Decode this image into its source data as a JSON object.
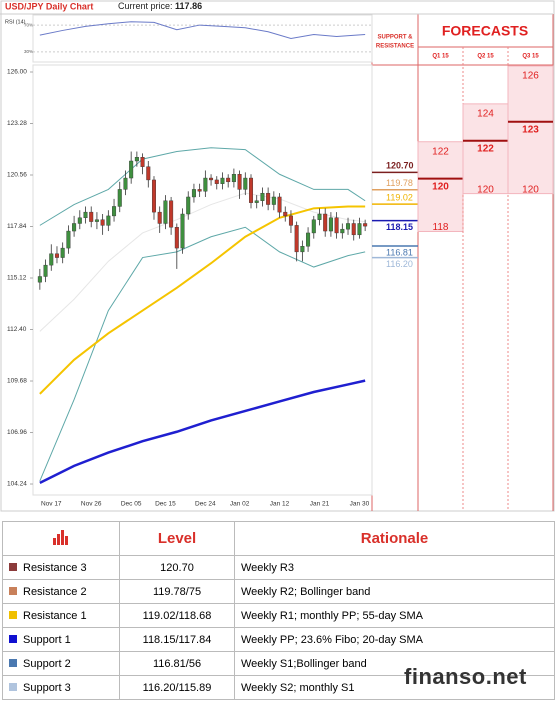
{
  "header": {
    "title": "USD/JPY Daily Chart",
    "current_price_label": "Current price:",
    "current_price": 117.86
  },
  "rsi": {
    "label": "RSI (14)",
    "color": "#6a7ac8",
    "ylim": [
      15,
      85
    ],
    "yticks": [
      {
        "value": 70,
        "label": "70%"
      },
      {
        "value": 30,
        "label": "30%"
      }
    ],
    "x": [
      0,
      4,
      8,
      12,
      16,
      20,
      24,
      28,
      32,
      36,
      40,
      44,
      48,
      52,
      57
    ],
    "values": [
      55,
      62,
      68,
      72,
      75,
      74,
      63,
      70,
      68,
      66,
      60,
      50,
      56,
      53,
      56
    ]
  },
  "chart_data": {
    "type": "candlestick",
    "ylim": [
      103.66,
      126.37
    ],
    "yticks": [
      {
        "value": 126,
        "label": "126.00"
      },
      123.28,
      120.56,
      117.84,
      115.12,
      {
        "value": 112.4,
        "label": "112.40"
      },
      109.68,
      106.96,
      104.24
    ],
    "up_color": "#3f8f3f",
    "down_color": "#c0392b",
    "categories": [
      null,
      null,
      "Nov 17",
      null,
      null,
      null,
      null,
      null,
      null,
      "Nov 26",
      null,
      null,
      null,
      null,
      null,
      null,
      "Dec 05",
      null,
      null,
      null,
      null,
      null,
      "Dec 15",
      null,
      null,
      null,
      null,
      null,
      null,
      "Dec 24",
      null,
      null,
      null,
      null,
      null,
      "Jan 02",
      null,
      null,
      null,
      null,
      null,
      null,
      "Jan 12",
      null,
      null,
      null,
      null,
      null,
      null,
      "Jan 21",
      null,
      null,
      null,
      null,
      null,
      null,
      "Jan 30",
      null
    ],
    "open": [
      114.9,
      115.2,
      115.8,
      116.4,
      116.2,
      116.7,
      117.6,
      118.0,
      118.3,
      118.6,
      118.1,
      118.2,
      117.9,
      118.4,
      118.9,
      119.8,
      120.4,
      121.3,
      121.5,
      121.0,
      120.3,
      118.6,
      118.0,
      119.2,
      117.8,
      116.7,
      118.5,
      119.4,
      119.8,
      119.7,
      120.4,
      120.3,
      120.1,
      120.4,
      120.2,
      120.6,
      119.8,
      120.4,
      119.1,
      119.2,
      119.6,
      119.0,
      119.4,
      118.6,
      118.4,
      117.9,
      116.5,
      116.8,
      117.5,
      118.2,
      118.5,
      117.6,
      118.3,
      117.5,
      117.7,
      118.0,
      117.4,
      118.0
    ],
    "high": [
      115.6,
      116.1,
      116.9,
      116.8,
      117.0,
      117.9,
      118.4,
      118.7,
      118.9,
      118.9,
      118.6,
      118.5,
      118.7,
      119.3,
      120.2,
      120.8,
      121.8,
      121.8,
      121.7,
      121.3,
      120.5,
      118.9,
      119.5,
      119.4,
      118.0,
      118.8,
      119.7,
      120.1,
      120.1,
      120.8,
      120.6,
      120.5,
      120.7,
      120.6,
      120.9,
      120.8,
      120.7,
      120.6,
      119.5,
      119.9,
      119.9,
      119.7,
      119.6,
      118.9,
      118.7,
      118.1,
      117.1,
      117.8,
      118.4,
      118.8,
      118.8,
      118.6,
      118.6,
      118.0,
      118.3,
      118.2,
      118.3,
      118.2
    ],
    "low": [
      114.5,
      114.9,
      115.5,
      115.9,
      115.9,
      116.4,
      117.3,
      117.7,
      118.0,
      117.8,
      117.7,
      117.4,
      117.6,
      118.1,
      118.6,
      119.5,
      120.1,
      121.0,
      120.6,
      119.9,
      118.2,
      117.5,
      117.7,
      117.4,
      115.6,
      116.4,
      118.2,
      119.1,
      119.4,
      119.4,
      120.0,
      119.8,
      119.8,
      119.9,
      119.9,
      119.3,
      119.5,
      118.8,
      118.8,
      118.9,
      118.7,
      118.7,
      118.3,
      118.1,
      117.5,
      116.0,
      116.0,
      116.5,
      117.2,
      117.9,
      117.3,
      117.3,
      117.2,
      117.2,
      117.4,
      117.1,
      117.2,
      117.6
    ],
    "close": [
      115.2,
      115.8,
      116.4,
      116.2,
      116.7,
      117.6,
      118.0,
      118.3,
      118.6,
      118.1,
      118.2,
      117.9,
      118.4,
      118.9,
      119.8,
      120.4,
      121.3,
      121.5,
      121.0,
      120.3,
      118.6,
      118.0,
      119.2,
      117.8,
      116.7,
      118.5,
      119.4,
      119.8,
      119.7,
      120.4,
      120.3,
      120.1,
      120.4,
      120.2,
      120.6,
      119.8,
      120.4,
      119.1,
      119.2,
      119.6,
      119.0,
      119.4,
      118.6,
      118.4,
      117.9,
      116.5,
      116.8,
      117.5,
      118.2,
      118.5,
      117.6,
      118.3,
      117.5,
      117.7,
      118.0,
      117.4,
      118.0,
      117.86
    ],
    "lines": [
      {
        "color": "#e6e6e6",
        "width": 1,
        "x": [
          0,
          6,
          12,
          18,
          24,
          30,
          36,
          42,
          48,
          54,
          57
        ],
        "values": [
          112.3,
          114.0,
          116.0,
          117.5,
          118.2,
          119.0,
          119.6,
          119.3,
          118.6,
          118.2,
          118.1
        ]
      },
      {
        "color": "#5ea8a8",
        "width": 1,
        "x": [
          0,
          6,
          12,
          18,
          24,
          30,
          36,
          42,
          48,
          54,
          57
        ],
        "values": [
          117.9,
          119.0,
          119.8,
          121.4,
          121.8,
          122.0,
          121.9,
          120.6,
          119.8,
          119.8,
          119.2
        ]
      },
      {
        "color": "#5ea8a8",
        "width": 1,
        "x": [
          0,
          6,
          12,
          18,
          24,
          30,
          36,
          42,
          48,
          54,
          57
        ],
        "values": [
          104.4,
          108.7,
          113.4,
          116.2,
          116.5,
          117.3,
          117.8,
          116.5,
          115.7,
          116.3,
          116.5
        ]
      },
      {
        "color": "#f5c400",
        "width": 2,
        "x": [
          0,
          6,
          12,
          18,
          24,
          30,
          36,
          42,
          48,
          54,
          57
        ],
        "values": [
          109.0,
          110.8,
          112.2,
          113.4,
          114.6,
          115.9,
          117.3,
          118.3,
          118.8,
          118.9,
          118.9
        ]
      },
      {
        "color": "#1f1fd0",
        "width": 2.5,
        "x": [
          0,
          6,
          12,
          18,
          24,
          30,
          36,
          42,
          48,
          54,
          57
        ],
        "values": [
          104.3,
          105.2,
          105.9,
          106.5,
          107.0,
          107.6,
          108.1,
          108.6,
          109.1,
          109.5,
          109.7
        ]
      }
    ]
  },
  "levels": {
    "header": [
      "SUPPORT &",
      "RESISTANCE"
    ],
    "items": [
      {
        "level": {
          "value": 120.7,
          "label": "120.70"
        },
        "color": "#7b1f1f"
      },
      {
        "level": 119.78,
        "color": "#e0a060"
      },
      {
        "level": 119.02,
        "color": "#f0b400"
      },
      {
        "level": 118.15,
        "color": "#1a1ab0"
      },
      {
        "level": 116.81,
        "color": "#4a78b0"
      },
      {
        "level": {
          "value": 116.2,
          "label": "116.20"
        },
        "color": "#9fb8d8"
      }
    ]
  },
  "forecasts": {
    "title": "FORECASTS",
    "color": "#e02020",
    "box_color": "#fbe3e6",
    "items": [
      {
        "quarter": "Q1 15",
        "high": 122,
        "mid": 120,
        "low": 118
      },
      {
        "quarter": "Q2 15",
        "high": 124,
        "mid": 122,
        "low": 120
      },
      {
        "quarter": "Q3 15",
        "high": 126,
        "mid": 123,
        "low": 120
      }
    ]
  },
  "table": {
    "headers": [
      "Level",
      "Rationale"
    ],
    "rows": [
      {
        "color": "#8b3a3a",
        "name": "Resistance 3",
        "level": "120.70",
        "rationale": "Weekly R3"
      },
      {
        "color": "#c8805a",
        "name": "Resistance 2",
        "level": "119.78/75",
        "rationale": "Weekly R2; Bollinger band"
      },
      {
        "color": "#f0c000",
        "name": "Resistance 1",
        "level": "119.02/118.68",
        "rationale": "Weekly R1; monthly PP; 55-day SMA"
      },
      {
        "color": "#1010d0",
        "name": "Support 1",
        "level": "118.15/117.84",
        "rationale": "Weekly PP; 23.6% Fibo; 20-day SMA"
      },
      {
        "color": "#4a78b0",
        "name": "Support 2",
        "level": "116.81/56",
        "rationale": "Weekly S1;Bollinger band"
      },
      {
        "color": "#b0c4de",
        "name": "Support 3",
        "level": "116.20/115.89",
        "rationale": "Weekly S2; monthly S1"
      }
    ]
  },
  "watermark": "finanso.net"
}
